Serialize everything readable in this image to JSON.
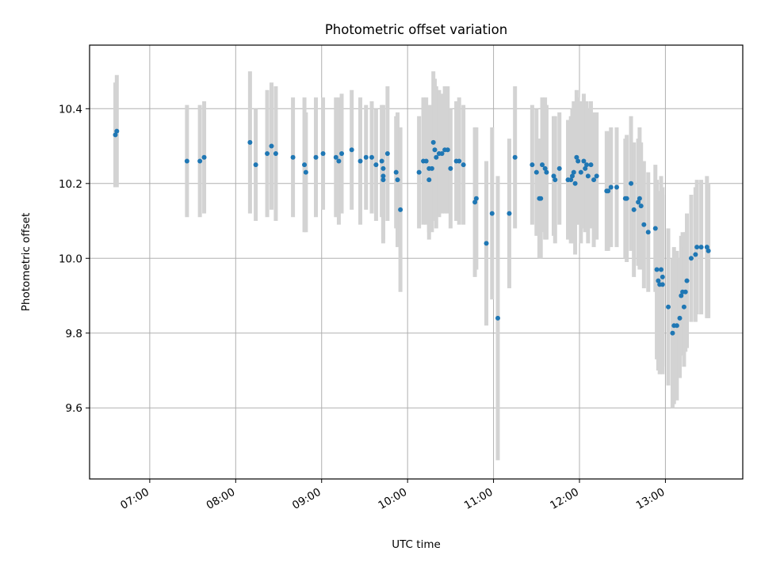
{
  "chart_data": {
    "type": "scatter",
    "title": "Photometric offset variation",
    "xlabel": "UTC time",
    "ylabel": "Photometric offset",
    "x_unit": "UTC time of day (HH:MM)",
    "xlim": [
      "06:18",
      "13:54"
    ],
    "ylim": [
      9.41,
      10.57
    ],
    "grid": true,
    "legend": "none",
    "colors": {
      "points": "#1f77b4",
      "errorbars": "#d3d3d3",
      "grid": "#b0b0b0"
    },
    "x_ticks": [
      "07:00",
      "08:00",
      "09:00",
      "10:00",
      "11:00",
      "12:00",
      "13:00"
    ],
    "y_ticks": [
      9.6,
      9.8,
      10.0,
      10.2,
      10.4
    ],
    "y_tick_labels": [
      "9.6",
      "9.8",
      "10.0",
      "10.2",
      "10.4"
    ],
    "points": [
      {
        "t": "06:36",
        "y": 10.33,
        "err": 0.14
      },
      {
        "t": "06:37",
        "y": 10.34,
        "err": 0.15
      },
      {
        "t": "07:26",
        "y": 10.26,
        "err": 0.15
      },
      {
        "t": "07:35",
        "y": 10.26,
        "err": 0.15
      },
      {
        "t": "07:38",
        "y": 10.27,
        "err": 0.15
      },
      {
        "t": "08:10",
        "y": 10.31,
        "err": 0.19
      },
      {
        "t": "08:14",
        "y": 10.25,
        "err": 0.15
      },
      {
        "t": "08:22",
        "y": 10.28,
        "err": 0.17
      },
      {
        "t": "08:25",
        "y": 10.3,
        "err": 0.17
      },
      {
        "t": "08:28",
        "y": 10.28,
        "err": 0.18
      },
      {
        "t": "08:40",
        "y": 10.27,
        "err": 0.16
      },
      {
        "t": "08:48",
        "y": 10.25,
        "err": 0.18
      },
      {
        "t": "08:49",
        "y": 10.23,
        "err": 0.16
      },
      {
        "t": "08:56",
        "y": 10.27,
        "err": 0.16
      },
      {
        "t": "09:01",
        "y": 10.28,
        "err": 0.15
      },
      {
        "t": "09:10",
        "y": 10.27,
        "err": 0.16
      },
      {
        "t": "09:12",
        "y": 10.26,
        "err": 0.17
      },
      {
        "t": "09:14",
        "y": 10.28,
        "err": 0.16
      },
      {
        "t": "09:21",
        "y": 10.29,
        "err": 0.16
      },
      {
        "t": "09:27",
        "y": 10.26,
        "err": 0.17
      },
      {
        "t": "09:31",
        "y": 10.27,
        "err": 0.14
      },
      {
        "t": "09:35",
        "y": 10.27,
        "err": 0.15
      },
      {
        "t": "09:38",
        "y": 10.25,
        "err": 0.15
      },
      {
        "t": "09:42",
        "y": 10.26,
        "err": 0.15
      },
      {
        "t": "09:43",
        "y": 10.24,
        "err": 0.17
      },
      {
        "t": "09:43",
        "y": 10.22,
        "err": 0.18
      },
      {
        "t": "09:43",
        "y": 10.21,
        "err": 0.16
      },
      {
        "t": "09:46",
        "y": 10.28,
        "err": 0.18
      },
      {
        "t": "09:52",
        "y": 10.23,
        "err": 0.15
      },
      {
        "t": "09:53",
        "y": 10.21,
        "err": 0.18
      },
      {
        "t": "09:55",
        "y": 10.13,
        "err": 0.22
      },
      {
        "t": "10:08",
        "y": 10.23,
        "err": 0.15
      },
      {
        "t": "10:11",
        "y": 10.26,
        "err": 0.17
      },
      {
        "t": "10:13",
        "y": 10.26,
        "err": 0.17
      },
      {
        "t": "10:15",
        "y": 10.24,
        "err": 0.17
      },
      {
        "t": "10:15",
        "y": 10.21,
        "err": 0.16
      },
      {
        "t": "10:17",
        "y": 10.24,
        "err": 0.17
      },
      {
        "t": "10:18",
        "y": 10.31,
        "err": 0.19
      },
      {
        "t": "10:19",
        "y": 10.29,
        "err": 0.19
      },
      {
        "t": "10:20",
        "y": 10.27,
        "err": 0.19
      },
      {
        "t": "10:22",
        "y": 10.28,
        "err": 0.17
      },
      {
        "t": "10:24",
        "y": 10.28,
        "err": 0.16
      },
      {
        "t": "10:26",
        "y": 10.29,
        "err": 0.17
      },
      {
        "t": "10:28",
        "y": 10.29,
        "err": 0.17
      },
      {
        "t": "10:30",
        "y": 10.24,
        "err": 0.16
      },
      {
        "t": "10:34",
        "y": 10.26,
        "err": 0.16
      },
      {
        "t": "10:36",
        "y": 10.26,
        "err": 0.17
      },
      {
        "t": "10:39",
        "y": 10.25,
        "err": 0.16
      },
      {
        "t": "10:47",
        "y": 10.15,
        "err": 0.2
      },
      {
        "t": "10:48",
        "y": 10.16,
        "err": 0.19
      },
      {
        "t": "10:55",
        "y": 10.04,
        "err": 0.22
      },
      {
        "t": "10:59",
        "y": 10.12,
        "err": 0.23
      },
      {
        "t": "11:03",
        "y": 9.84,
        "err": 0.38
      },
      {
        "t": "11:11",
        "y": 10.12,
        "err": 0.2
      },
      {
        "t": "11:15",
        "y": 10.27,
        "err": 0.19
      },
      {
        "t": "11:27",
        "y": 10.25,
        "err": 0.16
      },
      {
        "t": "11:30",
        "y": 10.23,
        "err": 0.17
      },
      {
        "t": "11:32",
        "y": 10.16,
        "err": 0.16
      },
      {
        "t": "11:33",
        "y": 10.16,
        "err": 0.16
      },
      {
        "t": "11:34",
        "y": 10.25,
        "err": 0.18
      },
      {
        "t": "11:36",
        "y": 10.24,
        "err": 0.19
      },
      {
        "t": "11:37",
        "y": 10.23,
        "err": 0.18
      },
      {
        "t": "11:42",
        "y": 10.22,
        "err": 0.16
      },
      {
        "t": "11:43",
        "y": 10.21,
        "err": 0.17
      },
      {
        "t": "11:46",
        "y": 10.24,
        "err": 0.15
      },
      {
        "t": "11:52",
        "y": 10.21,
        "err": 0.16
      },
      {
        "t": "11:54",
        "y": 10.21,
        "err": 0.17
      },
      {
        "t": "11:55",
        "y": 10.22,
        "err": 0.18
      },
      {
        "t": "11:56",
        "y": 10.23,
        "err": 0.19
      },
      {
        "t": "11:57",
        "y": 10.2,
        "err": 0.19
      },
      {
        "t": "11:58",
        "y": 10.27,
        "err": 0.18
      },
      {
        "t": "11:59",
        "y": 10.26,
        "err": 0.17
      },
      {
        "t": "12:01",
        "y": 10.23,
        "err": 0.19
      },
      {
        "t": "12:03",
        "y": 10.26,
        "err": 0.18
      },
      {
        "t": "12:04",
        "y": 10.24,
        "err": 0.17
      },
      {
        "t": "12:05",
        "y": 10.25,
        "err": 0.17
      },
      {
        "t": "12:06",
        "y": 10.22,
        "err": 0.18
      },
      {
        "t": "12:08",
        "y": 10.25,
        "err": 0.17
      },
      {
        "t": "12:10",
        "y": 10.21,
        "err": 0.18
      },
      {
        "t": "12:12",
        "y": 10.22,
        "err": 0.17
      },
      {
        "t": "12:19",
        "y": 10.18,
        "err": 0.16
      },
      {
        "t": "12:20",
        "y": 10.18,
        "err": 0.16
      },
      {
        "t": "12:22",
        "y": 10.19,
        "err": 0.16
      },
      {
        "t": "12:26",
        "y": 10.19,
        "err": 0.16
      },
      {
        "t": "12:32",
        "y": 10.16,
        "err": 0.16
      },
      {
        "t": "12:33",
        "y": 10.16,
        "err": 0.17
      },
      {
        "t": "12:36",
        "y": 10.2,
        "err": 0.18
      },
      {
        "t": "12:38",
        "y": 10.13,
        "err": 0.18
      },
      {
        "t": "12:41",
        "y": 10.15,
        "err": 0.17
      },
      {
        "t": "12:42",
        "y": 10.16,
        "err": 0.19
      },
      {
        "t": "12:43",
        "y": 10.14,
        "err": 0.17
      },
      {
        "t": "12:45",
        "y": 10.09,
        "err": 0.17
      },
      {
        "t": "12:48",
        "y": 10.07,
        "err": 0.16
      },
      {
        "t": "12:53",
        "y": 10.08,
        "err": 0.17
      },
      {
        "t": "12:54",
        "y": 9.97,
        "err": 0.24
      },
      {
        "t": "12:55",
        "y": 9.94,
        "err": 0.24
      },
      {
        "t": "12:56",
        "y": 9.93,
        "err": 0.24
      },
      {
        "t": "12:57",
        "y": 9.97,
        "err": 0.25
      },
      {
        "t": "12:58",
        "y": 9.95,
        "err": 0.24
      },
      {
        "t": "12:58",
        "y": 9.93,
        "err": 0.24
      },
      {
        "t": "13:02",
        "y": 9.87,
        "err": 0.21
      },
      {
        "t": "13:05",
        "y": 9.8,
        "err": 0.2
      },
      {
        "t": "13:06",
        "y": 9.82,
        "err": 0.21
      },
      {
        "t": "13:08",
        "y": 9.82,
        "err": 0.2
      },
      {
        "t": "13:10",
        "y": 9.84,
        "err": 0.16
      },
      {
        "t": "13:11",
        "y": 9.9,
        "err": 0.16
      },
      {
        "t": "13:12",
        "y": 9.91,
        "err": 0.16
      },
      {
        "t": "13:13",
        "y": 9.87,
        "err": 0.16
      },
      {
        "t": "13:14",
        "y": 9.91,
        "err": 0.16
      },
      {
        "t": "13:15",
        "y": 9.94,
        "err": 0.18
      },
      {
        "t": "13:18",
        "y": 10.0,
        "err": 0.17
      },
      {
        "t": "13:21",
        "y": 10.01,
        "err": 0.18
      },
      {
        "t": "13:22",
        "y": 10.03,
        "err": 0.18
      },
      {
        "t": "13:25",
        "y": 10.03,
        "err": 0.18
      },
      {
        "t": "13:29",
        "y": 10.03,
        "err": 0.19
      },
      {
        "t": "13:30",
        "y": 10.02,
        "err": 0.18
      }
    ]
  }
}
